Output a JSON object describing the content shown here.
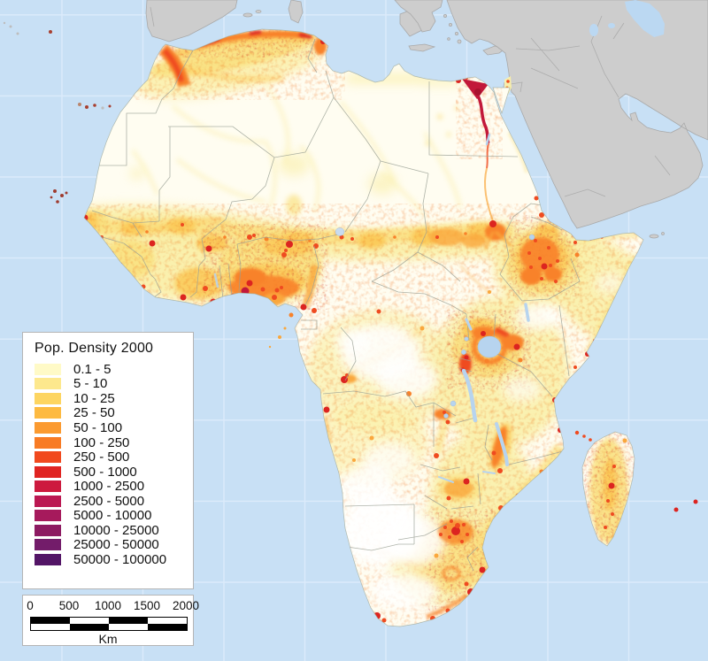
{
  "map": {
    "region": "Africa",
    "theme": "Population density, year 2000",
    "ocean_color": "#C8E0F5",
    "graticule_color": "#DCEBFB",
    "nodata_land_color": "#CDCDCD",
    "lake_color": "#B7D4EF",
    "country_border_color": "#9AA095"
  },
  "legend": {
    "title": "Pop. Density 2000",
    "classes": [
      {
        "label": "0.1 - 5",
        "color": "#FFFAC7"
      },
      {
        "label": "5 - 10",
        "color": "#FDE88D"
      },
      {
        "label": "10 - 25",
        "color": "#FDD561"
      },
      {
        "label": "25 - 50",
        "color": "#FDBA41"
      },
      {
        "label": "50 - 100",
        "color": "#FB9A30"
      },
      {
        "label": "100 - 250",
        "color": "#F87B24"
      },
      {
        "label": "250 - 500",
        "color": "#F1491E"
      },
      {
        "label": "500 - 1000",
        "color": "#E02421"
      },
      {
        "label": "1000 - 2500",
        "color": "#CD1A3E"
      },
      {
        "label": "2500 - 5000",
        "color": "#BB1852"
      },
      {
        "label": "5000 - 10000",
        "color": "#A61A5C"
      },
      {
        "label": "10000 - 25000",
        "color": "#8D1A62"
      },
      {
        "label": "25000 - 50000",
        "color": "#731C6A"
      },
      {
        "label": "50000 - 100000",
        "color": "#531566"
      }
    ]
  },
  "scale_bar": {
    "tick_labels": [
      "0",
      "500",
      "1000",
      "1500",
      "2000"
    ],
    "unit_label": "Km"
  }
}
